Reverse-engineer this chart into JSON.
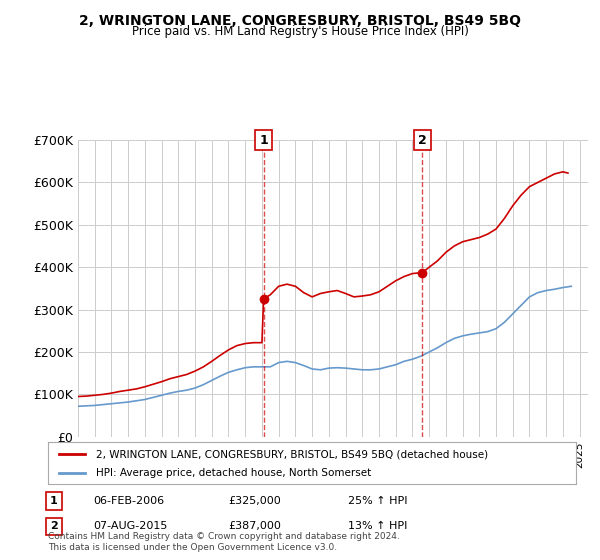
{
  "title": "2, WRINGTON LANE, CONGRESBURY, BRISTOL, BS49 5BQ",
  "subtitle": "Price paid vs. HM Land Registry's House Price Index (HPI)",
  "ylabel": "",
  "legend_line1": "2, WRINGTON LANE, CONGRESBURY, BRISTOL, BS49 5BQ (detached house)",
  "legend_line2": "HPI: Average price, detached house, North Somerset",
  "annotation1_label": "1",
  "annotation1_date": "06-FEB-2006",
  "annotation1_price": "£325,000",
  "annotation1_hpi": "25% ↑ HPI",
  "annotation2_label": "2",
  "annotation2_date": "07-AUG-2015",
  "annotation2_price": "£387,000",
  "annotation2_hpi": "13% ↑ HPI",
  "footnote": "Contains HM Land Registry data © Crown copyright and database right 2024.\nThis data is licensed under the Open Government Licence v3.0.",
  "red_color": "#cc0000",
  "blue_color": "#6699cc",
  "background_color": "#ffffff",
  "grid_color": "#cccccc",
  "ylim": [
    0,
    700000
  ],
  "yticks": [
    0,
    100000,
    200000,
    300000,
    400000,
    500000,
    600000,
    700000
  ],
  "ytick_labels": [
    "£0",
    "£100K",
    "£200K",
    "£300K",
    "£400K",
    "£500K",
    "£600K",
    "£700K"
  ],
  "xmin": 1995.0,
  "xmax": 2025.5,
  "sale1_x": 2006.1,
  "sale1_y": 325000,
  "sale2_x": 2015.6,
  "sale2_y": 387000,
  "hpi_years": [
    1995,
    1995.5,
    1996,
    1996.5,
    1997,
    1997.5,
    1998,
    1998.5,
    1999,
    1999.5,
    2000,
    2000.5,
    2001,
    2001.5,
    2002,
    2002.5,
    2003,
    2003.5,
    2004,
    2004.5,
    2005,
    2005.5,
    2006,
    2006.5,
    2007,
    2007.5,
    2008,
    2008.5,
    2009,
    2009.5,
    2010,
    2010.5,
    2011,
    2011.5,
    2012,
    2012.5,
    2013,
    2013.5,
    2014,
    2014.5,
    2015,
    2015.5,
    2016,
    2016.5,
    2017,
    2017.5,
    2018,
    2018.5,
    2019,
    2019.5,
    2020,
    2020.5,
    2021,
    2021.5,
    2022,
    2022.5,
    2023,
    2023.5,
    2024,
    2024.5
  ],
  "hpi_values": [
    72000,
    73000,
    74000,
    76000,
    78000,
    80000,
    82000,
    85000,
    88000,
    93000,
    98000,
    103000,
    107000,
    110000,
    115000,
    123000,
    133000,
    143000,
    152000,
    158000,
    163000,
    165000,
    165000,
    165000,
    175000,
    178000,
    175000,
    168000,
    160000,
    158000,
    162000,
    163000,
    162000,
    160000,
    158000,
    158000,
    160000,
    165000,
    170000,
    178000,
    183000,
    190000,
    200000,
    210000,
    222000,
    232000,
    238000,
    242000,
    245000,
    248000,
    255000,
    270000,
    290000,
    310000,
    330000,
    340000,
    345000,
    348000,
    352000,
    355000
  ],
  "red_years": [
    1995,
    1995.5,
    1996,
    1996.5,
    1997,
    1997.5,
    1998,
    1998.5,
    1999,
    1999.5,
    2000,
    2000.5,
    2001,
    2001.5,
    2002,
    2002.5,
    2003,
    2003.5,
    2004,
    2004.5,
    2005,
    2005.5,
    2006,
    2006.1,
    2006.5,
    2007,
    2007.5,
    2008,
    2008.5,
    2009,
    2009.5,
    2010,
    2010.5,
    2011,
    2011.5,
    2012,
    2012.5,
    2013,
    2013.5,
    2014,
    2014.5,
    2015,
    2015.5,
    2015.6,
    2016,
    2016.5,
    2017,
    2017.5,
    2018,
    2018.5,
    2019,
    2019.5,
    2020,
    2020.5,
    2021,
    2021.5,
    2022,
    2022.5,
    2023,
    2023.5,
    2024,
    2024.3
  ],
  "red_values": [
    95000,
    96000,
    98000,
    100000,
    103000,
    107000,
    110000,
    113000,
    118000,
    124000,
    130000,
    137000,
    142000,
    147000,
    155000,
    165000,
    178000,
    192000,
    205000,
    215000,
    220000,
    222000,
    222000,
    325000,
    335000,
    355000,
    360000,
    355000,
    340000,
    330000,
    338000,
    342000,
    345000,
    338000,
    330000,
    332000,
    335000,
    342000,
    355000,
    368000,
    378000,
    385000,
    387000,
    387000,
    400000,
    415000,
    435000,
    450000,
    460000,
    465000,
    470000,
    478000,
    490000,
    515000,
    545000,
    570000,
    590000,
    600000,
    610000,
    620000,
    625000,
    622000
  ]
}
